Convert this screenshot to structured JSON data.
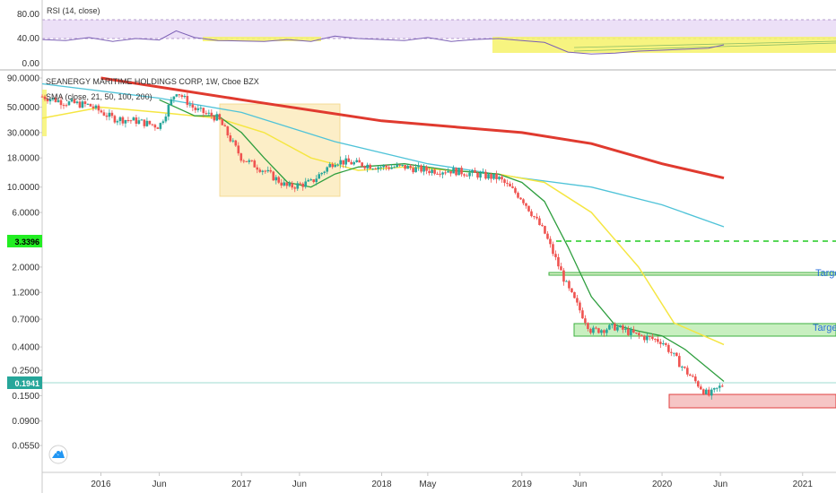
{
  "chart_data": [
    {
      "type": "line",
      "title": "RSI (14, close)",
      "y_ticks": [
        "80.00",
        "40.00",
        "0.00"
      ],
      "ylim": [
        0,
        100
      ],
      "bands": [
        30,
        70
      ],
      "x": [
        "2015-08-01",
        "2015-10-01",
        "2015-12-01",
        "2016-02-01",
        "2016-04-01",
        "2016-06-01",
        "2016-07-15",
        "2016-09-01",
        "2016-11-01",
        "2017-01-01",
        "2017-03-01",
        "2017-05-01",
        "2017-07-01",
        "2017-09-01",
        "2017-11-01",
        "2018-01-01",
        "2018-03-01",
        "2018-05-01",
        "2018-07-01",
        "2018-09-01",
        "2018-11-01",
        "2019-01-01",
        "2019-03-01",
        "2019-05-01",
        "2019-07-01",
        "2019-09-01",
        "2019-11-01",
        "2020-01-01",
        "2020-03-01",
        "2020-05-01",
        "2020-06-10"
      ],
      "values": [
        48,
        46,
        52,
        44,
        50,
        47,
        66,
        52,
        46,
        45,
        44,
        48,
        44,
        55,
        50,
        48,
        46,
        52,
        44,
        48,
        50,
        46,
        42,
        22,
        18,
        20,
        24,
        26,
        28,
        30,
        37
      ]
    },
    {
      "type": "candlestick",
      "title": "SEANERGY MARITIME HOLDINGS CORP, 1W, Cboe BZX",
      "subtitle": "SMA (close, 21, 50, 100, 200)",
      "scale": "log",
      "y_ticks": [
        "90.0000",
        "50.0000",
        "30.0000",
        "18.0000",
        "10.0000",
        "6.0000",
        "2.0000",
        "1.2000",
        "0.7000",
        "0.4000",
        "0.2500",
        "0.1500",
        "0.0900",
        "0.0550"
      ],
      "x_ticks": [
        "2016",
        "Jun",
        "2017",
        "Jun",
        "2018",
        "May",
        "2019",
        "Jun",
        "2020",
        "Jun",
        "2021"
      ],
      "last_price": "0.1941",
      "marker_price": "3.3396",
      "annotations": [
        "Targe",
        "Targe"
      ],
      "close_series": {
        "x": [
          "2015-08-01",
          "2015-10-01",
          "2015-12-01",
          "2016-02-01",
          "2016-04-01",
          "2016-06-01",
          "2016-07-15",
          "2016-09-01",
          "2016-11-01",
          "2017-01-01",
          "2017-03-01",
          "2017-05-01",
          "2017-07-01",
          "2017-09-01",
          "2017-11-01",
          "2018-01-01",
          "2018-03-01",
          "2018-05-01",
          "2018-07-01",
          "2018-09-01",
          "2018-11-01",
          "2019-01-01",
          "2019-03-01",
          "2019-05-01",
          "2019-07-01",
          "2019-09-01",
          "2019-11-01",
          "2020-01-01",
          "2020-03-01",
          "2020-05-01",
          "2020-06-10"
        ],
        "values": [
          62,
          55,
          52,
          40,
          38,
          34,
          70,
          48,
          40,
          18,
          14,
          10,
          11,
          17,
          16,
          15,
          15,
          14,
          14,
          13,
          12,
          8,
          4,
          1.3,
          0.55,
          0.6,
          0.5,
          0.45,
          0.25,
          0.15,
          0.19
        ]
      },
      "sma_21": {
        "x": [
          "2016-06-01",
          "2016-09-01",
          "2016-11-01",
          "2017-01-01",
          "2017-03-01",
          "2017-05-01",
          "2017-07-01",
          "2017-09-01",
          "2017-11-01",
          "2018-03-01",
          "2018-07-01",
          "2018-11-01",
          "2019-01-01",
          "2019-03-01",
          "2019-05-01",
          "2019-07-01",
          "2019-09-01",
          "2019-11-01",
          "2020-01-01",
          "2020-03-01",
          "2020-06-10"
        ],
        "values": [
          58,
          42,
          42,
          30,
          18,
          11,
          10,
          13,
          15,
          16,
          14,
          13,
          11,
          7.5,
          3,
          1.1,
          0.62,
          0.55,
          0.5,
          0.38,
          0.2
        ]
      },
      "sma_50": {
        "x": [
          "2015-08-01",
          "2016-01-01",
          "2016-06-01",
          "2016-11-01",
          "2017-03-01",
          "2017-07-01",
          "2017-11-01",
          "2018-03-01",
          "2018-07-01",
          "2018-11-01",
          "2019-03-01",
          "2019-07-01",
          "2019-11-01",
          "2020-02-01",
          "2020-06-10"
        ],
        "values": [
          40,
          50,
          45,
          40,
          30,
          18,
          14,
          15,
          14,
          13,
          11,
          6,
          2,
          0.65,
          0.42
        ]
      },
      "sma_100": {
        "x": [
          "2015-08-01",
          "2016-06-01",
          "2017-01-01",
          "2017-09-01",
          "2018-05-01",
          "2019-01-01",
          "2019-07-01",
          "2020-01-01",
          "2020-06-10"
        ],
        "values": [
          80,
          60,
          45,
          25,
          16,
          12,
          10,
          7,
          4.5
        ]
      },
      "sma_200": {
        "x": [
          "2016-01-01",
          "2017-01-01",
          "2018-01-01",
          "2019-01-01",
          "2019-07-01",
          "2020-01-01",
          "2020-06-10"
        ],
        "values": [
          90,
          58,
          38,
          30,
          24,
          16,
          12
        ]
      }
    }
  ],
  "colors": {
    "sma_21": "#2e9e3e",
    "sma_50": "#f5e642",
    "sma_100": "#4fc3d8",
    "sma_200": "#e03a2f",
    "up": "#26a69a",
    "down": "#ef5350",
    "rsi_line": "#7b5fb5",
    "rsi_band": "#e9dcf5"
  },
  "icons": {
    "tv_logo": "tradingview-logo-icon"
  }
}
